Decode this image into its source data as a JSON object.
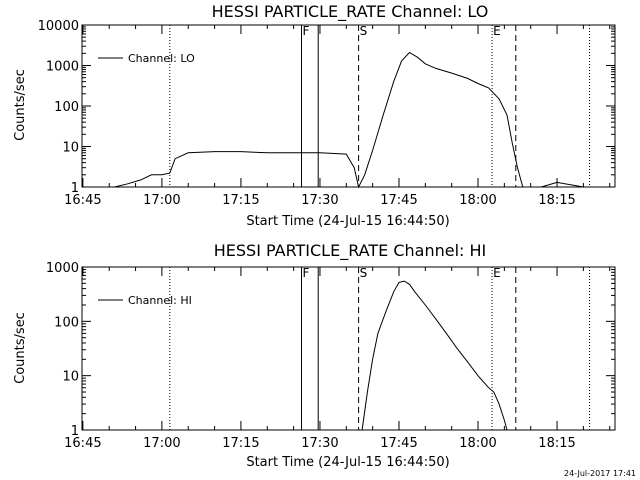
{
  "chart_data": [
    {
      "type": "line",
      "title": "HESSI PARTICLE_RATE Channel: LO",
      "ylabel": "Counts/sec",
      "xlabel": "Start Time (24-Jul-15 16:44:50)",
      "y_scale": "log",
      "ylim": [
        1,
        10000
      ],
      "y_ticks": [
        "1",
        "10",
        "100",
        "1000",
        "10000"
      ],
      "xlim": [
        "16:44:50",
        "18:26:00"
      ],
      "x_ticks": [
        "16:45",
        "17:00",
        "17:15",
        "17:30",
        "17:45",
        "18:00",
        "18:15"
      ],
      "legend": "Channel: LO",
      "legend_placement": "top-left",
      "flags": [
        {
          "label": "F",
          "time": "17:26:30",
          "style": "solid"
        },
        {
          "label": "",
          "time": "17:29:40",
          "style": "solid"
        },
        {
          "label": "S",
          "time": "17:37:20",
          "style": "dashed"
        },
        {
          "label": "E",
          "time": "18:02:40",
          "style": "dotted"
        },
        {
          "label": "",
          "time": "18:07:10",
          "style": "dashed"
        },
        {
          "label": "",
          "time": "17:01:30",
          "style": "dotted"
        },
        {
          "label": "",
          "time": "18:21:10",
          "style": "dotted"
        }
      ],
      "series": [
        {
          "name": "Channel: LO",
          "x": [
            "16:45:00",
            "16:51:00",
            "16:53:30",
            "16:56:00",
            "16:58:00",
            "17:00:00",
            "17:01:30",
            "17:02:30",
            "17:05:00",
            "17:10:00",
            "17:15:00",
            "17:20:00",
            "17:25:00",
            "17:30:00",
            "17:35:00",
            "17:36:30",
            "17:37:20",
            "17:38:30",
            "17:40:00",
            "17:42:00",
            "17:44:00",
            "17:45:30",
            "17:47:00",
            "17:48:30",
            "17:50:00",
            "17:52:00",
            "17:55:00",
            "17:58:00",
            "18:00:00",
            "18:02:00",
            "18:04:00",
            "18:05:30",
            "18:06:30",
            "18:07:30",
            "18:08:30",
            "18:10:00",
            "18:12:00",
            "18:15:00",
            "18:20:00",
            "18:26:00"
          ],
          "y": [
            1,
            1,
            1.2,
            1.5,
            2,
            2,
            2.2,
            5,
            7,
            7.5,
            7.5,
            7,
            7,
            7,
            6.5,
            3,
            1,
            2,
            8,
            60,
            400,
            1300,
            2100,
            1600,
            1100,
            850,
            650,
            480,
            360,
            280,
            150,
            60,
            12,
            3,
            1,
            1,
            1,
            1.3,
            1,
            1
          ]
        }
      ]
    },
    {
      "type": "line",
      "title": "HESSI PARTICLE_RATE Channel: HI",
      "ylabel": "Counts/sec",
      "xlabel": "Start Time (24-Jul-15 16:44:50)",
      "y_scale": "log",
      "ylim": [
        1,
        1000
      ],
      "y_ticks": [
        "1",
        "10",
        "100",
        "1000"
      ],
      "xlim": [
        "16:44:50",
        "18:26:00"
      ],
      "x_ticks": [
        "16:45",
        "17:00",
        "17:15",
        "17:30",
        "17:45",
        "18:00",
        "18:15"
      ],
      "legend": "Channel: HI",
      "legend_placement": "top-left",
      "flags": [
        {
          "label": "F",
          "time": "17:26:30",
          "style": "solid"
        },
        {
          "label": "",
          "time": "17:29:40",
          "style": "solid"
        },
        {
          "label": "S",
          "time": "17:37:20",
          "style": "dashed"
        },
        {
          "label": "E",
          "time": "18:02:40",
          "style": "dotted"
        },
        {
          "label": "",
          "time": "18:07:10",
          "style": "dashed"
        },
        {
          "label": "",
          "time": "17:01:30",
          "style": "dotted"
        },
        {
          "label": "",
          "time": "18:21:10",
          "style": "dotted"
        }
      ],
      "series": [
        {
          "name": "Channel: HI",
          "x": [
            "17:38:00",
            "17:39:00",
            "17:40:00",
            "17:41:00",
            "17:42:30",
            "17:44:00",
            "17:45:00",
            "17:46:00",
            "17:47:00",
            "17:48:00",
            "17:50:00",
            "17:52:00",
            "17:54:00",
            "17:56:00",
            "17:58:00",
            "18:00:00",
            "18:02:00",
            "18:03:00",
            "18:04:00",
            "18:05:00",
            "18:05:30"
          ],
          "y": [
            1,
            5,
            20,
            60,
            150,
            350,
            520,
            550,
            480,
            350,
            200,
            110,
            60,
            32,
            18,
            10,
            6,
            5,
            3,
            1.5,
            1
          ]
        }
      ]
    }
  ],
  "footer": {
    "timestamp": "24-Jul-2017 17:41"
  }
}
